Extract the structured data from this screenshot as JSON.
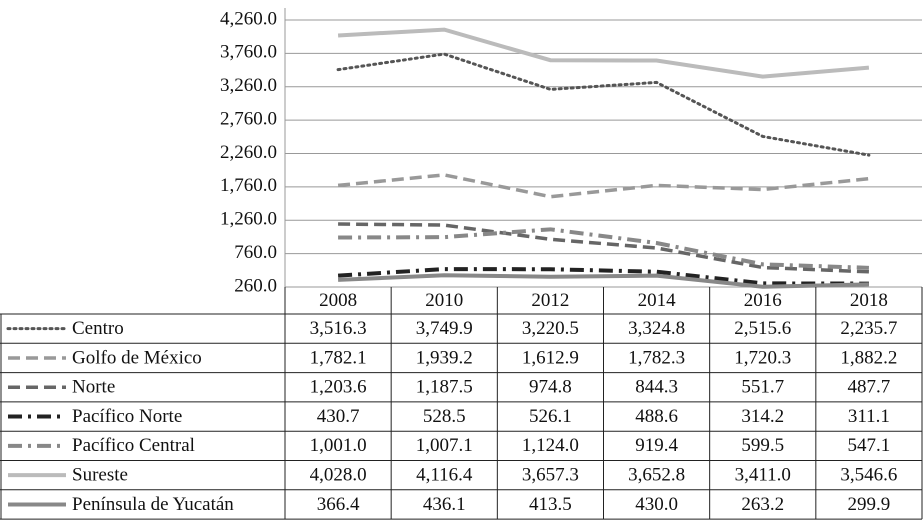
{
  "chart_data": {
    "type": "line",
    "categories": [
      "2008",
      "2010",
      "2012",
      "2014",
      "2016",
      "2018"
    ],
    "ylim": [
      260,
      4260
    ],
    "yticks": [
      {
        "value": 260,
        "label": "260.0"
      },
      {
        "value": 760,
        "label": "760.0"
      },
      {
        "value": 1260,
        "label": "1,260.0"
      },
      {
        "value": 1760,
        "label": "1,760.0"
      },
      {
        "value": 2260,
        "label": "2,260.0"
      },
      {
        "value": 2760,
        "label": "2,760.0"
      },
      {
        "value": 3260,
        "label": "3,260.0"
      },
      {
        "value": 3760,
        "label": "3,760.0"
      },
      {
        "value": 4260,
        "label": "4,260.0"
      }
    ],
    "grid": true,
    "series": [
      {
        "name": "Centro",
        "color": "#555555",
        "style": "dotted",
        "values": [
          3516.3,
          3749.9,
          3220.5,
          3324.8,
          2515.6,
          2235.7
        ],
        "value_labels": [
          "3,516.3",
          "3,749.9",
          "3,220.5",
          "3,324.8",
          "2,515.6",
          "2,235.7"
        ]
      },
      {
        "name": "Golfo de México",
        "color": "#999999",
        "style": "dashed",
        "values": [
          1782.1,
          1939.2,
          1612.9,
          1782.3,
          1720.3,
          1882.2
        ],
        "value_labels": [
          "1,782.1",
          "1,939.2",
          "1,612.9",
          "1,782.3",
          "1,720.3",
          "1,882.2"
        ]
      },
      {
        "name": "Norte",
        "color": "#666666",
        "style": "dashed",
        "values": [
          1203.6,
          1187.5,
          974.8,
          844.3,
          551.7,
          487.7
        ],
        "value_labels": [
          "1,203.6",
          "1,187.5",
          "974.8",
          "844.3",
          "551.7",
          "487.7"
        ]
      },
      {
        "name": "Pacífico Norte",
        "color": "#222222",
        "style": "dashdot",
        "values": [
          430.7,
          528.5,
          526.1,
          488.6,
          314.2,
          311.1
        ],
        "value_labels": [
          "430.7",
          "528.5",
          "526.1",
          "488.6",
          "314.2",
          "311.1"
        ]
      },
      {
        "name": "Pacífico Central",
        "color": "#888888",
        "style": "dashdot",
        "values": [
          1001.0,
          1007.1,
          1124.0,
          919.4,
          599.5,
          547.1
        ],
        "value_labels": [
          "1,001.0",
          "1,007.1",
          "1,124.0",
          "919.4",
          "599.5",
          "547.1"
        ]
      },
      {
        "name": "Sureste",
        "color": "#bbbbbb",
        "style": "solid",
        "values": [
          4028.0,
          4116.4,
          3657.3,
          3652.8,
          3411.0,
          3546.6
        ],
        "value_labels": [
          "4,028.0",
          "4,116.4",
          "3,657.3",
          "3,652.8",
          "3,411.0",
          "3,546.6"
        ]
      },
      {
        "name": "Península de Yucatán",
        "color": "#888888",
        "style": "solid",
        "values": [
          366.4,
          436.1,
          413.5,
          430.0,
          263.2,
          299.9
        ],
        "value_labels": [
          "366.4",
          "436.1",
          "413.5",
          "430.0",
          "263.2",
          "299.9"
        ]
      }
    ]
  }
}
